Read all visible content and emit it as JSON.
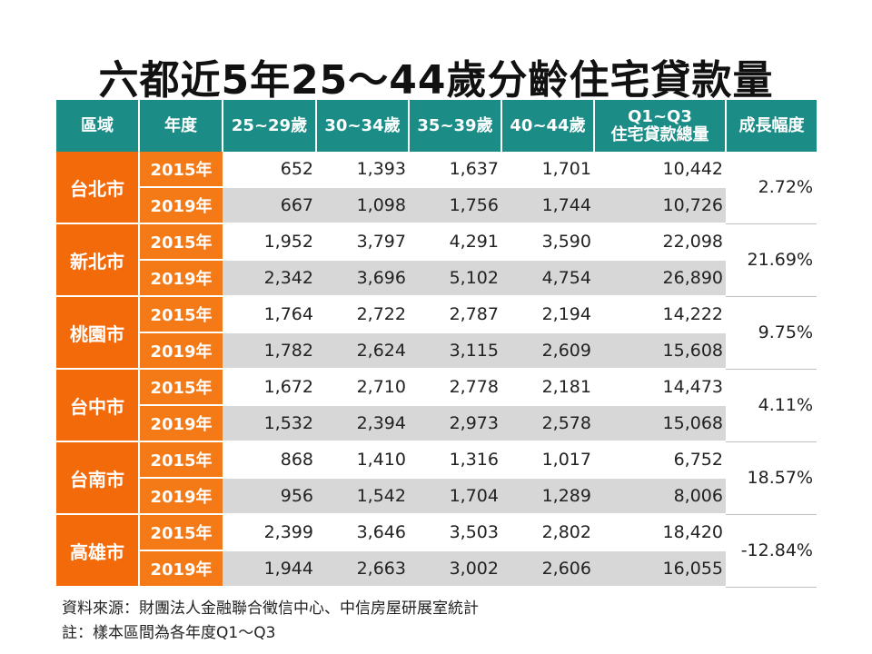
{
  "chart_data": {
    "type": "table",
    "title": "六都近5年25～44歲分齡住宅貸款量",
    "columns": [
      "區域",
      "年度",
      "25~29歲",
      "30~34歲",
      "35~39歲",
      "40~44歲",
      "Q1~Q3",
      "住宅貸款總量",
      "成長幅度"
    ],
    "rows": [
      {
        "region": "台北市",
        "growth": "2.72%",
        "years": [
          {
            "year": "2015年",
            "values": [
              "652",
              "1,393",
              "1,637",
              "1,701",
              "10,442"
            ]
          },
          {
            "year": "2019年",
            "values": [
              "667",
              "1,098",
              "1,756",
              "1,744",
              "10,726"
            ]
          }
        ]
      },
      {
        "region": "新北市",
        "growth": "21.69%",
        "years": [
          {
            "year": "2015年",
            "values": [
              "1,952",
              "3,797",
              "4,291",
              "3,590",
              "22,098"
            ]
          },
          {
            "year": "2019年",
            "values": [
              "2,342",
              "3,696",
              "5,102",
              "4,754",
              "26,890"
            ]
          }
        ]
      },
      {
        "region": "桃園市",
        "growth": "9.75%",
        "years": [
          {
            "year": "2015年",
            "values": [
              "1,764",
              "2,722",
              "2,787",
              "2,194",
              "14,222"
            ]
          },
          {
            "year": "2019年",
            "values": [
              "1,782",
              "2,624",
              "3,115",
              "2,609",
              "15,608"
            ]
          }
        ]
      },
      {
        "region": "台中市",
        "growth": "4.11%",
        "years": [
          {
            "year": "2015年",
            "values": [
              "1,672",
              "2,710",
              "2,778",
              "2,181",
              "14,473"
            ]
          },
          {
            "year": "2019年",
            "values": [
              "1,532",
              "2,394",
              "2,973",
              "2,578",
              "15,068"
            ]
          }
        ]
      },
      {
        "region": "台南市",
        "growth": "18.57%",
        "years": [
          {
            "year": "2015年",
            "values": [
              "868",
              "1,410",
              "1,316",
              "1,017",
              "6,752"
            ]
          },
          {
            "year": "2019年",
            "values": [
              "956",
              "1,542",
              "1,704",
              "1,289",
              "8,006"
            ]
          }
        ]
      },
      {
        "region": "高雄市",
        "growth": "-12.84%",
        "years": [
          {
            "year": "2015年",
            "values": [
              "2,399",
              "3,646",
              "3,503",
              "2,802",
              "18,420"
            ]
          },
          {
            "year": "2019年",
            "values": [
              "1,944",
              "2,663",
              "3,002",
              "2,606",
              "16,055"
            ]
          }
        ]
      }
    ],
    "notes": [
      "資料來源：財團法人金融聯合徵信中心、中信房屋研展室統計",
      "註：樣本區間為各年度Q1～Q3"
    ]
  },
  "colors": {
    "header_bg": "#1b8c86",
    "region_bg": "#f26a0a",
    "year_bg": "#f47a18",
    "alt_row_bg": "#d7d7d7"
  }
}
